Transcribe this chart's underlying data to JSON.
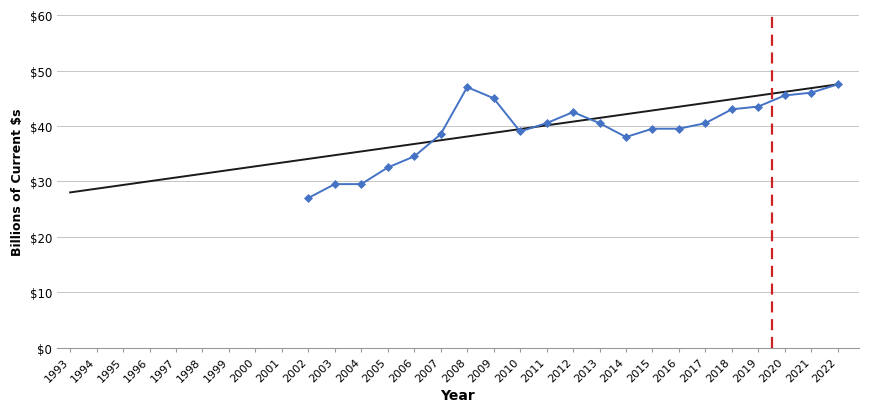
{
  "years_data": [
    2002,
    2003,
    2004,
    2005,
    2006,
    2007,
    2008,
    2009,
    2010,
    2011,
    2012,
    2013,
    2014,
    2015,
    2016,
    2017,
    2018,
    2019,
    2020,
    2021,
    2022
  ],
  "values": [
    27.0,
    29.5,
    29.5,
    32.5,
    34.5,
    38.5,
    47.0,
    45.0,
    39.0,
    40.5,
    42.5,
    40.5,
    38.0,
    39.5,
    39.5,
    40.5,
    43.0,
    43.5,
    45.5,
    46.0,
    47.5
  ],
  "trend_x": [
    1993,
    2022
  ],
  "trend_y": [
    28.0,
    47.5
  ],
  "x_tick_years": [
    1993,
    1994,
    1995,
    1996,
    1997,
    1998,
    1999,
    2000,
    2001,
    2002,
    2003,
    2004,
    2005,
    2006,
    2007,
    2008,
    2009,
    2010,
    2011,
    2012,
    2013,
    2014,
    2015,
    2016,
    2017,
    2018,
    2019,
    2020,
    2021,
    2022
  ],
  "x_min": 1992.5,
  "x_max": 2022.8,
  "y_min": 0,
  "y_max": 60,
  "y_ticks": [
    0,
    10,
    20,
    30,
    40,
    50,
    60
  ],
  "vline_x": 2019.5,
  "line_color": "#4472C4",
  "marker_color": "#4472C4",
  "trend_color": "#1a1a1a",
  "vline_color": "#CC2222",
  "grid_color": "#BBBBBB",
  "bg_color": "#FFFFFF",
  "xlabel": "Year",
  "ylabel": "Billions of Current $s",
  "tick_label_fontsize": 8.0,
  "axis_label_fontsize": 10
}
